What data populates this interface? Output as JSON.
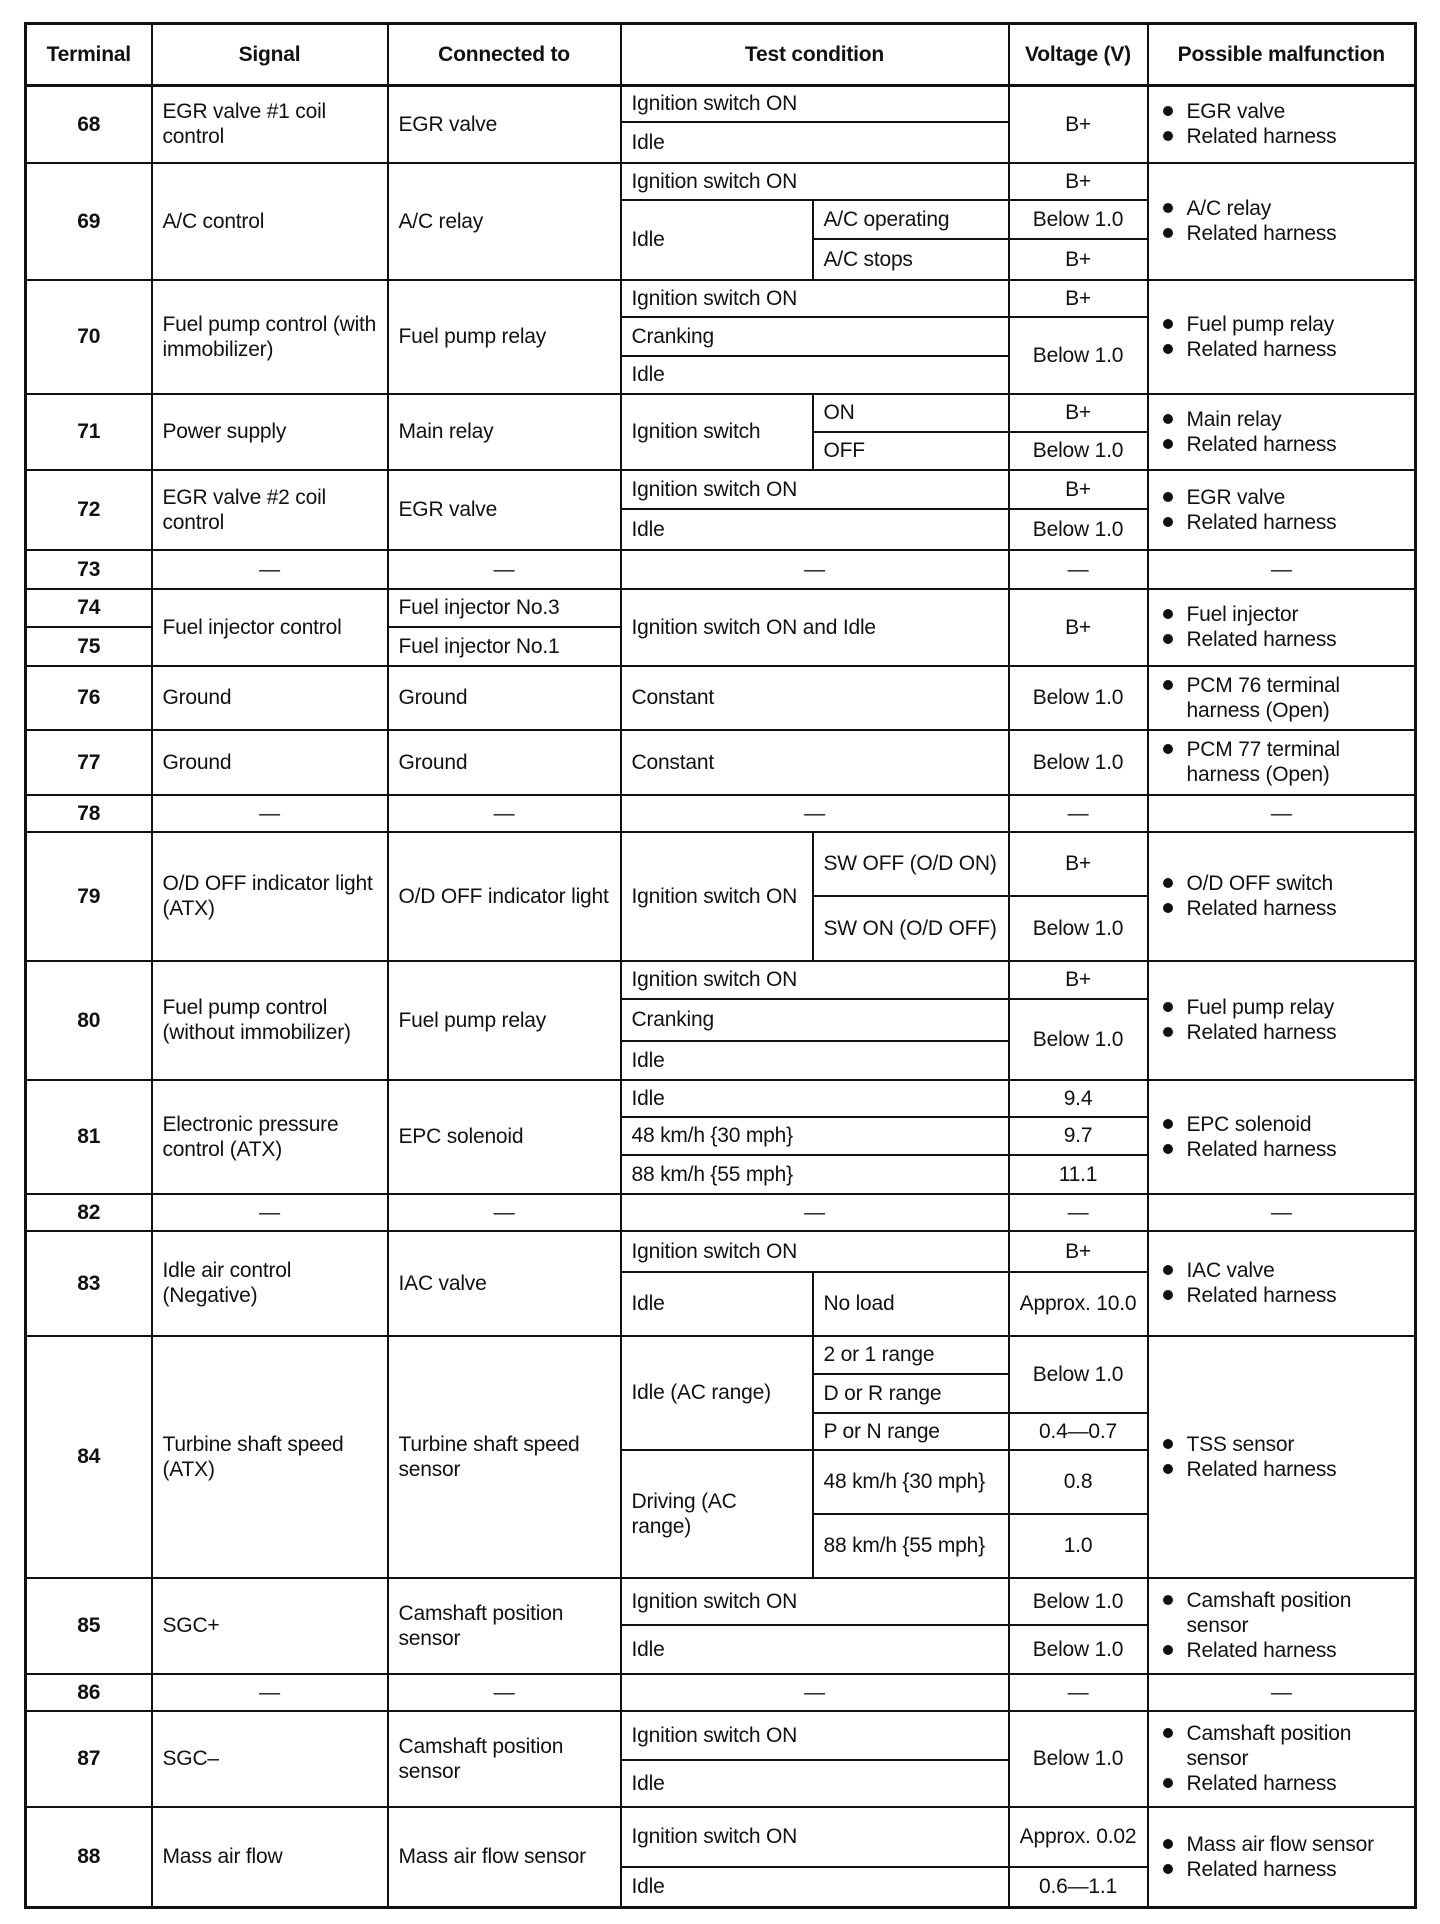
{
  "header": {
    "terminal": "Terminal",
    "signal": "Signal",
    "connected_to": "Connected to",
    "test_condition": "Test condition",
    "voltage": "Voltage (V)",
    "malfunction": "Possible malfunction"
  },
  "rows": [
    [
      {
        "term": "68",
        "rs": 2
      },
      {
        "text": "EGR valve #1 coil control",
        "rs": 2
      },
      {
        "text": "EGR valve",
        "rs": 2
      },
      {
        "text": "Ignition switch ON",
        "cs": 2
      },
      {
        "volt": "B+",
        "rs": 2
      },
      {
        "mal": [
          "EGR valve",
          "Related harness"
        ],
        "rs": 2
      }
    ],
    [
      {
        "text": "Idle",
        "cs": 2
      }
    ],
    [
      {
        "term": "69",
        "rs": 3
      },
      {
        "text": "A/C control",
        "rs": 3
      },
      {
        "text": "A/C relay",
        "rs": 3
      },
      {
        "text": "Ignition switch ON",
        "cs": 2
      },
      {
        "volt": "B+"
      },
      {
        "mal": [
          "A/C relay",
          "Related harness"
        ],
        "rs": 3
      }
    ],
    [
      {
        "text": "Idle",
        "rs": 2
      },
      {
        "text": "A/C operating"
      },
      {
        "volt": "Below 1.0"
      }
    ],
    [
      {
        "text": "A/C stops"
      },
      {
        "volt": "B+"
      }
    ],
    [
      {
        "term": "70",
        "rs": 3
      },
      {
        "text": "Fuel pump control (with immobilizer)",
        "rs": 3
      },
      {
        "text": "Fuel pump relay",
        "rs": 3
      },
      {
        "text": "Ignition switch ON",
        "cs": 2
      },
      {
        "volt": "B+"
      },
      {
        "mal": [
          "Fuel pump relay",
          "Related harness"
        ],
        "rs": 3
      }
    ],
    [
      {
        "text": "Cranking",
        "cs": 2
      },
      {
        "volt": "Below 1.0",
        "rs": 2
      }
    ],
    [
      {
        "text": "Idle",
        "cs": 2
      }
    ],
    [
      {
        "term": "71",
        "rs": 2
      },
      {
        "text": "Power supply",
        "rs": 2
      },
      {
        "text": "Main relay",
        "rs": 2
      },
      {
        "text": "Ignition switch",
        "rs": 2
      },
      {
        "text": "ON"
      },
      {
        "volt": "B+"
      },
      {
        "mal": [
          "Main relay",
          "Related harness"
        ],
        "rs": 2
      }
    ],
    [
      {
        "text": "OFF"
      },
      {
        "volt": "Below 1.0"
      }
    ],
    [
      {
        "term": "72",
        "rs": 2
      },
      {
        "text": "EGR valve #2 coil control",
        "rs": 2
      },
      {
        "text": "EGR valve",
        "rs": 2
      },
      {
        "text": "Ignition switch ON",
        "cs": 2
      },
      {
        "volt": "B+"
      },
      {
        "mal": [
          "EGR valve",
          "Related harness"
        ],
        "rs": 2
      }
    ],
    [
      {
        "text": "Idle",
        "cs": 2
      },
      {
        "volt": "Below 1.0"
      }
    ],
    [
      {
        "term": "73"
      },
      {
        "dash": "—"
      },
      {
        "dash": "—"
      },
      {
        "dash": "—",
        "cs": 2
      },
      {
        "dash": "—"
      },
      {
        "dash": "—"
      }
    ],
    [
      {
        "term": "74"
      },
      {
        "text": "Fuel injector control",
        "rs": 2
      },
      {
        "text": "Fuel injector No.3"
      },
      {
        "text": "Ignition switch ON and Idle",
        "cs": 2,
        "rs": 2
      },
      {
        "volt": "B+",
        "rs": 2
      },
      {
        "mal": [
          "Fuel injector",
          "Related harness"
        ],
        "rs": 2
      }
    ],
    [
      {
        "term": "75"
      },
      {
        "text": "Fuel injector No.1"
      }
    ],
    [
      {
        "term": "76"
      },
      {
        "text": "Ground"
      },
      {
        "text": "Ground"
      },
      {
        "text": "Constant",
        "cs": 2
      },
      {
        "volt": "Below 1.0"
      },
      {
        "mal": [
          "PCM 76 terminal harness (Open)"
        ]
      }
    ],
    [
      {
        "term": "77"
      },
      {
        "text": "Ground"
      },
      {
        "text": "Ground"
      },
      {
        "text": "Constant",
        "cs": 2
      },
      {
        "volt": "Below 1.0"
      },
      {
        "mal": [
          "PCM 77 terminal harness (Open)"
        ]
      }
    ],
    [
      {
        "term": "78"
      },
      {
        "dash": "—"
      },
      {
        "dash": "—"
      },
      {
        "dash": "—",
        "cs": 2
      },
      {
        "dash": "—"
      },
      {
        "dash": "—"
      }
    ],
    [
      {
        "term": "79",
        "rs": 2
      },
      {
        "text": "O/D OFF indicator light (ATX)",
        "rs": 2
      },
      {
        "text": "O/D OFF indicator light",
        "rs": 2
      },
      {
        "text": "Ignition switch ON",
        "rs": 2
      },
      {
        "text": "SW OFF (O/D ON)"
      },
      {
        "volt": "B+"
      },
      {
        "mal": [
          "O/D OFF switch",
          "Related harness"
        ],
        "rs": 2
      }
    ],
    [
      {
        "text": "SW ON (O/D OFF)"
      },
      {
        "volt": "Below 1.0"
      }
    ],
    [
      {
        "term": "80",
        "rs": 3
      },
      {
        "text": "Fuel pump control (without immobilizer)",
        "rs": 3
      },
      {
        "text": "Fuel pump relay",
        "rs": 3
      },
      {
        "text": "Ignition switch ON",
        "cs": 2
      },
      {
        "volt": "B+"
      },
      {
        "mal": [
          "Fuel pump relay",
          "Related harness"
        ],
        "rs": 3
      }
    ],
    [
      {
        "text": "Cranking",
        "cs": 2
      },
      {
        "volt": "Below 1.0",
        "rs": 2
      }
    ],
    [
      {
        "text": "Idle",
        "cs": 2
      }
    ],
    [
      {
        "term": "81",
        "rs": 3
      },
      {
        "text": "Electronic pressure control (ATX)",
        "rs": 3
      },
      {
        "text": "EPC solenoid",
        "rs": 3
      },
      {
        "text": "Idle",
        "cs": 2
      },
      {
        "volt": "9.4"
      },
      {
        "mal": [
          "EPC solenoid",
          "Related harness"
        ],
        "rs": 3
      }
    ],
    [
      {
        "text": "48 km/h {30 mph}",
        "cs": 2
      },
      {
        "volt": "9.7"
      }
    ],
    [
      {
        "text": "88 km/h {55 mph}",
        "cs": 2
      },
      {
        "volt": "11.1"
      }
    ],
    [
      {
        "term": "82"
      },
      {
        "dash": "—"
      },
      {
        "dash": "—"
      },
      {
        "dash": "—",
        "cs": 2
      },
      {
        "dash": "—"
      },
      {
        "dash": "—"
      }
    ],
    [
      {
        "term": "83",
        "rs": 2
      },
      {
        "text": "Idle air control (Negative)",
        "rs": 2
      },
      {
        "text": "IAC valve",
        "rs": 2
      },
      {
        "text": "Ignition switch ON",
        "cs": 2
      },
      {
        "volt": "B+"
      },
      {
        "mal": [
          "IAC valve",
          "Related harness"
        ],
        "rs": 2
      }
    ],
    [
      {
        "text": "Idle"
      },
      {
        "text": "No load"
      },
      {
        "volt": "Approx. 10.0"
      }
    ],
    [
      {
        "term": "84",
        "rs": 5
      },
      {
        "text": "Turbine shaft speed (ATX)",
        "rs": 5
      },
      {
        "text": "Turbine shaft speed sensor",
        "rs": 5
      },
      {
        "text": "Idle (AC range)",
        "rs": 3
      },
      {
        "text": "2 or 1 range"
      },
      {
        "volt": "Below 1.0",
        "rs": 2
      },
      {
        "mal": [
          "TSS sensor",
          "Related harness"
        ],
        "rs": 5
      }
    ],
    [
      {
        "text": "D or R range"
      }
    ],
    [
      {
        "text": "P or N range"
      },
      {
        "volt": "0.4—0.7"
      }
    ],
    [
      {
        "text": "Driving (AC range)",
        "rs": 2
      },
      {
        "text": "48 km/h {30 mph}"
      },
      {
        "volt": "0.8"
      }
    ],
    [
      {
        "text": "88 km/h {55 mph}"
      },
      {
        "volt": "1.0"
      }
    ],
    [
      {
        "term": "85",
        "rs": 2
      },
      {
        "text": "SGC+",
        "rs": 2
      },
      {
        "text": "Camshaft position sensor",
        "rs": 2
      },
      {
        "text": "Ignition switch ON",
        "cs": 2
      },
      {
        "volt": "Below 1.0"
      },
      {
        "mal": [
          "Camshaft position sensor",
          "Related harness"
        ],
        "rs": 2
      }
    ],
    [
      {
        "text": "Idle",
        "cs": 2
      },
      {
        "volt": "Below 1.0"
      }
    ],
    [
      {
        "term": "86"
      },
      {
        "dash": "—"
      },
      {
        "dash": "—"
      },
      {
        "dash": "—",
        "cs": 2
      },
      {
        "dash": "—"
      },
      {
        "dash": "—"
      }
    ],
    [
      {
        "term": "87",
        "rs": 2
      },
      {
        "text": "SGC–",
        "rs": 2
      },
      {
        "text": "Camshaft position sensor",
        "rs": 2
      },
      {
        "text": "Ignition switch ON",
        "cs": 2
      },
      {
        "volt": "Below 1.0",
        "rs": 2
      },
      {
        "mal": [
          "Camshaft position sensor",
          "Related harness"
        ],
        "rs": 2
      }
    ],
    [
      {
        "text": "Idle",
        "cs": 2
      }
    ],
    [
      {
        "term": "88",
        "rs": 2
      },
      {
        "text": "Mass air flow",
        "rs": 2
      },
      {
        "text": "Mass air flow sensor",
        "rs": 2
      },
      {
        "text": "Ignition switch ON",
        "cs": 2
      },
      {
        "volt": "Approx. 0.02"
      },
      {
        "mal": [
          "Mass air flow sensor",
          "Related harness"
        ],
        "rs": 2
      }
    ],
    [
      {
        "text": "Idle",
        "cs": 2
      },
      {
        "volt": "0.6—1.1"
      }
    ]
  ]
}
